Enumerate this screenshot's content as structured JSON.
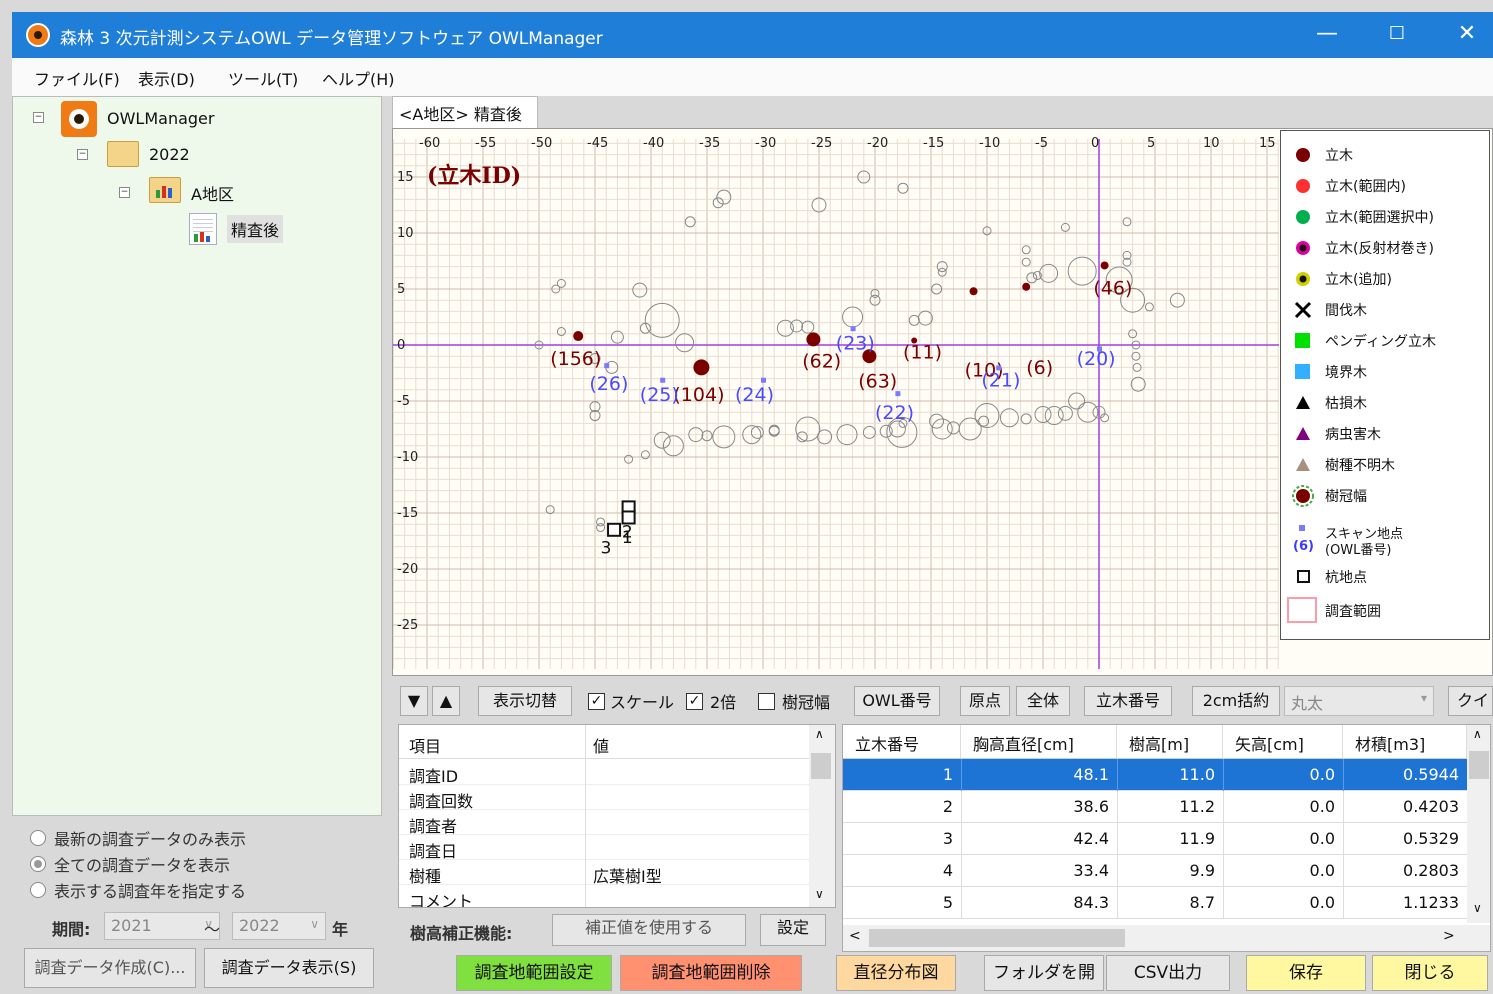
{
  "window": {
    "title": "森林 3 次元計測システムOWL データ管理ソフトウェア OWLManager",
    "controls": [
      "—",
      "☐",
      "✕"
    ]
  },
  "menu": [
    "ファイル(F)",
    "表示(D)",
    "ツール(T)",
    "ヘルプ(H)"
  ],
  "tree": {
    "root": "OWLManager",
    "year": "2022",
    "area": "A地区",
    "survey": "精査後"
  },
  "filter": {
    "options": [
      "最新の調査データのみ表示",
      "全ての調査データを表示",
      "表示する調査年を指定する"
    ],
    "period_label": "期間:",
    "from": "2021",
    "tilde": "～",
    "to": "2022",
    "year_suffix": "年",
    "btn_create": "調査データ作成(C)...",
    "btn_show": "調査データ表示(S)"
  },
  "tab": "<A地区> 精査後",
  "plot": {
    "label": "(立木ID)",
    "x_ticks": [
      "-60",
      "-55",
      "-50",
      "-45",
      "-40",
      "-35",
      "-30",
      "-25",
      "-20",
      "-15",
      "-10",
      "-5",
      "0",
      "5",
      "10",
      "15"
    ],
    "y_ticks": [
      "15",
      "10",
      "5",
      "0",
      "-5",
      "-10",
      "-15",
      "-20",
      "-25"
    ],
    "tree_ids": [
      "(156)",
      "(104)",
      "(62)",
      "(63)",
      "(11)",
      "(10)",
      "(6)",
      "(46)"
    ],
    "owl_ids": [
      "(26)",
      "(25)",
      "(24)",
      "(23)",
      "(22)",
      "(21)",
      "(20)"
    ],
    "stakes": [
      "1",
      "2",
      "3"
    ]
  },
  "legend": {
    "items": [
      {
        "label": "立木",
        "color": "#7a0000",
        "shape": "dot"
      },
      {
        "label": "立木(範囲内)",
        "color": "#ff3030",
        "shape": "dot"
      },
      {
        "label": "立木(範囲選択中)",
        "color": "#00b050",
        "shape": "dot"
      },
      {
        "label": "立木(反射材巻き)",
        "color": "#e000a0",
        "shape": "dot-ring"
      },
      {
        "label": "立木(追加)",
        "color": "#d0d000",
        "shape": "dot-ring"
      },
      {
        "label": "間伐木",
        "color": "#000000",
        "shape": "x"
      },
      {
        "label": "ペンディング立木",
        "color": "#00e000",
        "shape": "square"
      },
      {
        "label": "境界木",
        "color": "#30b0ff",
        "shape": "square"
      },
      {
        "label": "枯損木",
        "color": "#000000",
        "shape": "triangle"
      },
      {
        "label": "病虫害木",
        "color": "#800080",
        "shape": "triangle"
      },
      {
        "label": "樹種不明木",
        "color": "#a89080",
        "shape": "triangle"
      },
      {
        "label": "樹冠幅",
        "color": "#7a0000",
        "shape": "crown"
      }
    ],
    "scan_label": "スキャン地点",
    "scan_sub_id": "(6)",
    "scan_sub_text": "(OWL番号)",
    "stake_label": "杭地点",
    "area_label": "調査範囲"
  },
  "toolbar": {
    "down": "▼",
    "up": "▲",
    "toggle": "表示切替",
    "scale": "スケール",
    "double": "2倍",
    "crown": "樹冠幅",
    "owl": "OWL番号",
    "origin": "原点",
    "all": "全体",
    "tree_no": "立木番号",
    "bulk": "2cm括約",
    "shape_select": "丸太",
    "quick": "クイック"
  },
  "props": {
    "header": [
      "項目",
      "値"
    ],
    "rows": [
      [
        "調査ID",
        ""
      ],
      [
        "調査回数",
        ""
      ],
      [
        "調査者",
        ""
      ],
      [
        "調査日",
        ""
      ],
      [
        "樹種",
        "広葉樹Ⅰ型"
      ],
      [
        "コメント",
        ""
      ]
    ]
  },
  "height_corr": {
    "label": "樹高補正機能:",
    "use": "補正値を使用する",
    "setting": "設定"
  },
  "table": {
    "headers": [
      "立木番号",
      "胸高直径[cm]",
      "樹高[m]",
      "矢高[cm]",
      "材積[m3]"
    ],
    "rows": [
      [
        "1",
        "48.1",
        "11.0",
        "0.0",
        "0.5944"
      ],
      [
        "2",
        "38.6",
        "11.2",
        "0.0",
        "0.4203"
      ],
      [
        "3",
        "42.4",
        "11.9",
        "0.0",
        "0.5329"
      ],
      [
        "4",
        "33.4",
        "9.9",
        "0.0",
        "0.2803"
      ],
      [
        "5",
        "84.3",
        "8.7",
        "0.0",
        "1.1233"
      ]
    ]
  },
  "bottom": {
    "set_area": "調査地範囲設定",
    "del_area": "調査地範囲削除",
    "dist": "直径分布図",
    "open_folder": "フォルダを開く",
    "csv": "CSV出力",
    "save": "保存",
    "close": "閉じる"
  },
  "colors": {
    "titlebar": "#1f7fd8",
    "tree_bg": "#eef9ec",
    "tree_dot": "#7a0000",
    "owl_label": "#5a5aff",
    "axis": "#a040e0",
    "selected_row": "#1e74d4"
  }
}
